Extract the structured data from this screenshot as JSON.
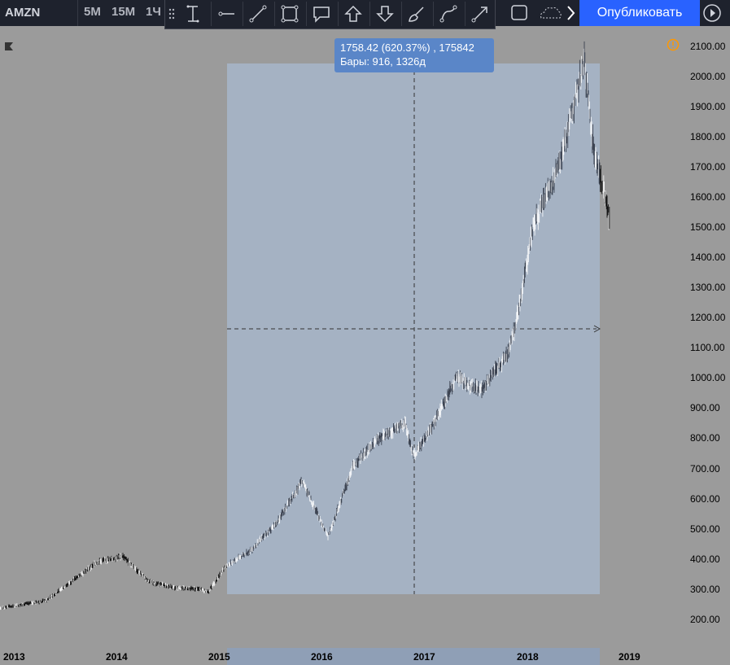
{
  "toolbar": {
    "symbol": "AMZN",
    "timeframes": [
      "5М",
      "15М",
      "1Ч"
    ],
    "publish_label": "Опубликовать"
  },
  "measure_tooltip": {
    "line1": "1758.42 (620.37%) , 175842",
    "line2": "Бары: 916, 1326д"
  },
  "price_axis": {
    "ticks": [
      "2100.00",
      "2000.00",
      "1900.00",
      "1800.00",
      "1700.00",
      "1600.00",
      "1500.00",
      "1400.00",
      "1300.00",
      "1200.00",
      "1100.00",
      "1000.00",
      "900.00",
      "800.00",
      "700.00",
      "600.00",
      "500.00",
      "400.00",
      "300.00",
      "200.00"
    ]
  },
  "time_axis": {
    "ticks": [
      "2013",
      "2014",
      "2015",
      "2016",
      "2017",
      "2018",
      "2019"
    ]
  },
  "colors": {
    "background": "#9b9b9b",
    "measure_box": "#a5b2c3",
    "accent": "#2962ff",
    "toolbar": "#1e222d",
    "warning": "#ff9800"
  },
  "chart_data": {
    "type": "line",
    "ylim": [
      180,
      2130
    ],
    "x": [
      "2012-12",
      "2013-06",
      "2013-12",
      "2014-03",
      "2014-06",
      "2014-09",
      "2014-12",
      "2015-01",
      "2015-03",
      "2015-06",
      "2015-09",
      "2015-12",
      "2016-03",
      "2016-06",
      "2016-09",
      "2016-12",
      "2017-01",
      "2017-03",
      "2017-06",
      "2017-09",
      "2017-12",
      "2018-01",
      "2018-03",
      "2018-06",
      "2018-09",
      "2018-10",
      "2018-11",
      "2018-12"
    ],
    "series": [
      {
        "values": [
          235,
          262,
          390,
          410,
          325,
          305,
          300,
          292,
          375,
          430,
          520,
          660,
          475,
          710,
          800,
          850,
          740,
          830,
          1000,
          960,
          1080,
          1180,
          1500,
          1700,
          2050,
          1780,
          1650,
          1520
        ]
      }
    ],
    "measure_range": {
      "from": "2015-01",
      "to": "2018-09",
      "price_change": 1758.42,
      "percent": 620.37,
      "bars": 916,
      "days": 1326
    }
  }
}
